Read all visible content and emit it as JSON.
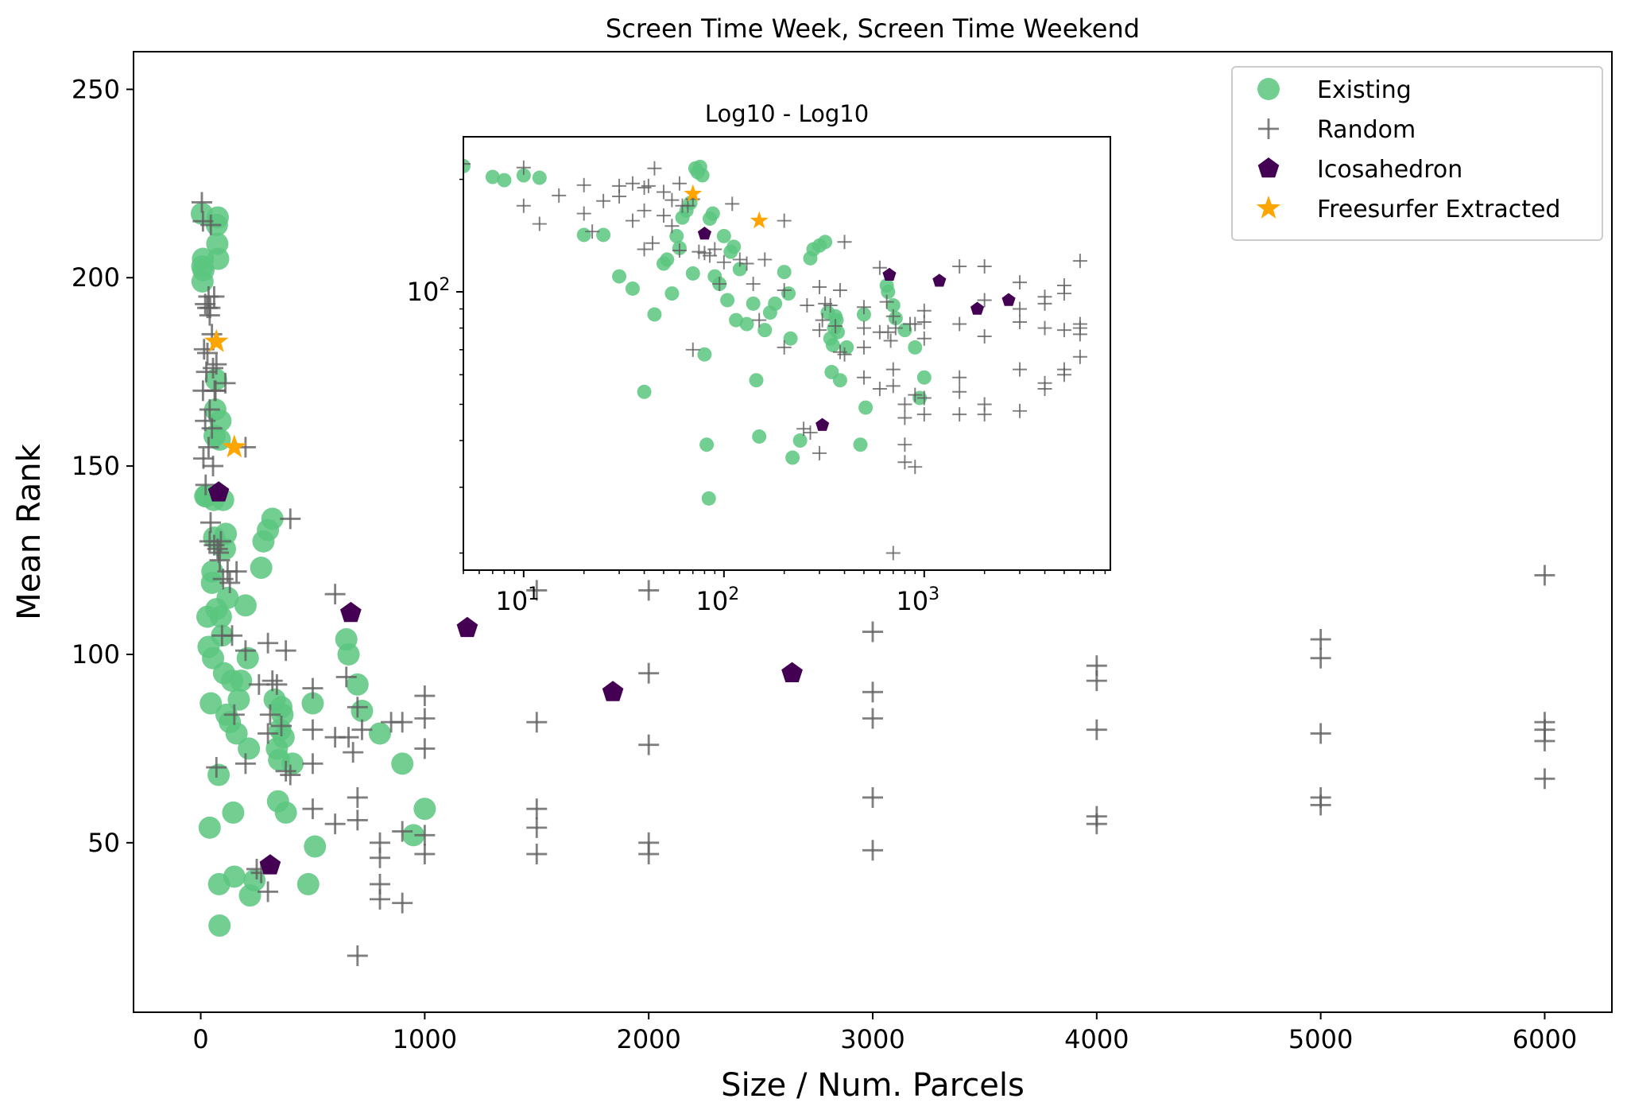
{
  "chart_data": [
    {
      "type": "scatter",
      "title": "Screen Time Week, Screen Time Weekend",
      "xlabel": "Size / Num. Parcels",
      "ylabel": "Mean Rank",
      "xlim": [
        -300,
        6300
      ],
      "ylim": [
        5,
        260
      ],
      "x_ticks": [
        0,
        1000,
        2000,
        3000,
        4000,
        5000,
        6000
      ],
      "y_ticks": [
        50,
        100,
        150,
        200,
        250
      ],
      "x_tick_labels": [
        "0",
        "1000",
        "2000",
        "3000",
        "4000",
        "5000",
        "6000"
      ],
      "y_tick_labels": [
        "50",
        "100",
        "150",
        "200",
        "250"
      ],
      "grid": false,
      "legend_position": "upper right",
      "series": [
        {
          "name": "Existing",
          "marker": "circle",
          "color": "#5ac57f",
          "points": [
            [
              5,
              217
            ],
            [
              7,
              203
            ],
            [
              8,
              199
            ],
            [
              10,
              205
            ],
            [
              12,
              202
            ],
            [
              20,
              142
            ],
            [
              25,
              142
            ],
            [
              30,
              110
            ],
            [
              35,
              102
            ],
            [
              40,
              54
            ],
            [
              45,
              87
            ],
            [
              50,
              119
            ],
            [
              52,
              122
            ],
            [
              55,
              99
            ],
            [
              58,
              141
            ],
            [
              60,
              131
            ],
            [
              62,
              158
            ],
            [
              65,
              165
            ],
            [
              68,
              173
            ],
            [
              70,
              112
            ],
            [
              72,
              214
            ],
            [
              74,
              209
            ],
            [
              76,
              216
            ],
            [
              78,
              205
            ],
            [
              80,
              68
            ],
            [
              82,
              39
            ],
            [
              84,
              28
            ],
            [
              85,
              157
            ],
            [
              88,
              162
            ],
            [
              90,
              110
            ],
            [
              95,
              105
            ],
            [
              100,
              141
            ],
            [
              104,
              95
            ],
            [
              108,
              128
            ],
            [
              112,
              132
            ],
            [
              115,
              84
            ],
            [
              120,
              115
            ],
            [
              130,
              82
            ],
            [
              140,
              93
            ],
            [
              145,
              58
            ],
            [
              150,
              41
            ],
            [
              160,
              79
            ],
            [
              170,
              88
            ],
            [
              180,
              93
            ],
            [
              200,
              113
            ],
            [
              210,
              99
            ],
            [
              215,
              75
            ],
            [
              220,
              36
            ],
            [
              240,
              40
            ],
            [
              270,
              123
            ],
            [
              280,
              130
            ],
            [
              300,
              133
            ],
            [
              320,
              136
            ],
            [
              330,
              88
            ],
            [
              340,
              75
            ],
            [
              345,
              61
            ],
            [
              350,
              72
            ],
            [
              355,
              80
            ],
            [
              360,
              86
            ],
            [
              365,
              84
            ],
            [
              370,
              78
            ],
            [
              380,
              58
            ],
            [
              410,
              71
            ],
            [
              480,
              39
            ],
            [
              500,
              87
            ],
            [
              510,
              49
            ],
            [
              650,
              104
            ],
            [
              660,
              100
            ],
            [
              700,
              92
            ],
            [
              720,
              85
            ],
            [
              800,
              79
            ],
            [
              900,
              71
            ],
            [
              950,
              52
            ],
            [
              1000,
              59
            ]
          ]
        },
        {
          "name": "Random",
          "marker": "plus",
          "color": "#606060",
          "points": [
            [
              5,
              220
            ],
            [
              10,
              215
            ],
            [
              10,
              170
            ],
            [
              12,
              152
            ],
            [
              15,
              181
            ],
            [
              20,
              193
            ],
            [
              20,
              162
            ],
            [
              22,
              145
            ],
            [
              25,
              175
            ],
            [
              30,
              180
            ],
            [
              30,
              192
            ],
            [
              35,
              195
            ],
            [
              35,
              155
            ],
            [
              40,
              165
            ],
            [
              40,
              130
            ],
            [
              40,
              190
            ],
            [
              42,
              192
            ],
            [
              44,
              135
            ],
            [
              45,
              214
            ],
            [
              50,
              160
            ],
            [
              50,
              185
            ],
            [
              55,
              176
            ],
            [
              55,
              150
            ],
            [
              60,
              195
            ],
            [
              60,
              129
            ],
            [
              62,
              170
            ],
            [
              66,
              170
            ],
            [
              70,
              70
            ],
            [
              70,
              177
            ],
            [
              75,
              128
            ],
            [
              80,
              127
            ],
            [
              85,
              125
            ],
            [
              90,
              130
            ],
            [
              95,
              105
            ],
            [
              100,
              120
            ],
            [
              110,
              172
            ],
            [
              120,
              122
            ],
            [
              130,
              119
            ],
            [
              140,
              105
            ],
            [
              150,
              84
            ],
            [
              160,
              122
            ],
            [
              200,
              101
            ],
            [
              200,
              71
            ],
            [
              200,
              155
            ],
            [
              250,
              43
            ],
            [
              260,
              92
            ],
            [
              270,
              42
            ],
            [
              300,
              37
            ],
            [
              300,
              103
            ],
            [
              300,
              79
            ],
            [
              310,
              84
            ],
            [
              320,
              93
            ],
            [
              340,
              92
            ],
            [
              360,
              81
            ],
            [
              380,
              101
            ],
            [
              380,
              69
            ],
            [
              400,
              68
            ],
            [
              400,
              136
            ],
            [
              500,
              91
            ],
            [
              500,
              80
            ],
            [
              500,
              71
            ],
            [
              500,
              59
            ],
            [
              600,
              116
            ],
            [
              600,
              78
            ],
            [
              600,
              55
            ],
            [
              650,
              94
            ],
            [
              660,
              78
            ],
            [
              680,
              74
            ],
            [
              700,
              86
            ],
            [
              700,
              56
            ],
            [
              700,
              62
            ],
            [
              700,
              20
            ],
            [
              720,
              80
            ],
            [
              800,
              50
            ],
            [
              800,
              46
            ],
            [
              800,
              39
            ],
            [
              800,
              35
            ],
            [
              850,
              82
            ],
            [
              900,
              53
            ],
            [
              900,
              34
            ],
            [
              900,
              82
            ],
            [
              1000,
              89
            ],
            [
              1000,
              83
            ],
            [
              1000,
              75
            ],
            [
              1000,
              52
            ],
            [
              1000,
              47
            ],
            [
              1500,
              82
            ],
            [
              1500,
              59
            ],
            [
              1500,
              54
            ],
            [
              1500,
              47
            ],
            [
              1500,
              117
            ],
            [
              2000,
              117
            ],
            [
              2000,
              95
            ],
            [
              2000,
              76
            ],
            [
              2000,
              50
            ],
            [
              2000,
              47
            ],
            [
              3000,
              106
            ],
            [
              3000,
              90
            ],
            [
              3000,
              83
            ],
            [
              3000,
              62
            ],
            [
              3000,
              48
            ],
            [
              4000,
              97
            ],
            [
              4000,
              93
            ],
            [
              4000,
              80
            ],
            [
              4000,
              57
            ],
            [
              4000,
              55
            ],
            [
              5000,
              104
            ],
            [
              5000,
              99
            ],
            [
              5000,
              79
            ],
            [
              5000,
              62
            ],
            [
              5000,
              60
            ],
            [
              6000,
              121
            ],
            [
              6000,
              82
            ],
            [
              6000,
              80
            ],
            [
              6000,
              77
            ],
            [
              6000,
              67
            ]
          ]
        },
        {
          "name": "Icosahedron",
          "marker": "pentagon",
          "color": "#440154",
          "points": [
            [
              80,
              143
            ],
            [
              310,
              44
            ],
            [
              670,
              111
            ],
            [
              1190,
              107
            ],
            [
              1840,
              90
            ],
            [
              2640,
              95
            ]
          ]
        },
        {
          "name": "Freesurfer Extracted",
          "marker": "star",
          "color": "#ffa500",
          "points": [
            [
              70,
              183
            ],
            [
              150,
              155
            ]
          ]
        }
      ]
    },
    {
      "type": "scatter",
      "title": "Log10 - Log10",
      "xscale": "log",
      "yscale": "log",
      "xlim": [
        5,
        8500
      ],
      "ylim": [
        18,
        260
      ],
      "x_tick_exponents": [
        "1",
        "2",
        "3"
      ],
      "y_tick_exponents": [
        "2"
      ],
      "tick_base": "10",
      "grid": false
    }
  ],
  "legend": {
    "items": [
      {
        "label": "Existing",
        "color": "#5ac57f",
        "marker": "circle"
      },
      {
        "label": "Random",
        "color": "#606060",
        "marker": "plus"
      },
      {
        "label": "Icosahedron",
        "color": "#440154",
        "marker": "pentagon"
      },
      {
        "label": "Freesurfer Extracted",
        "color": "#ffa500",
        "marker": "star"
      }
    ]
  }
}
